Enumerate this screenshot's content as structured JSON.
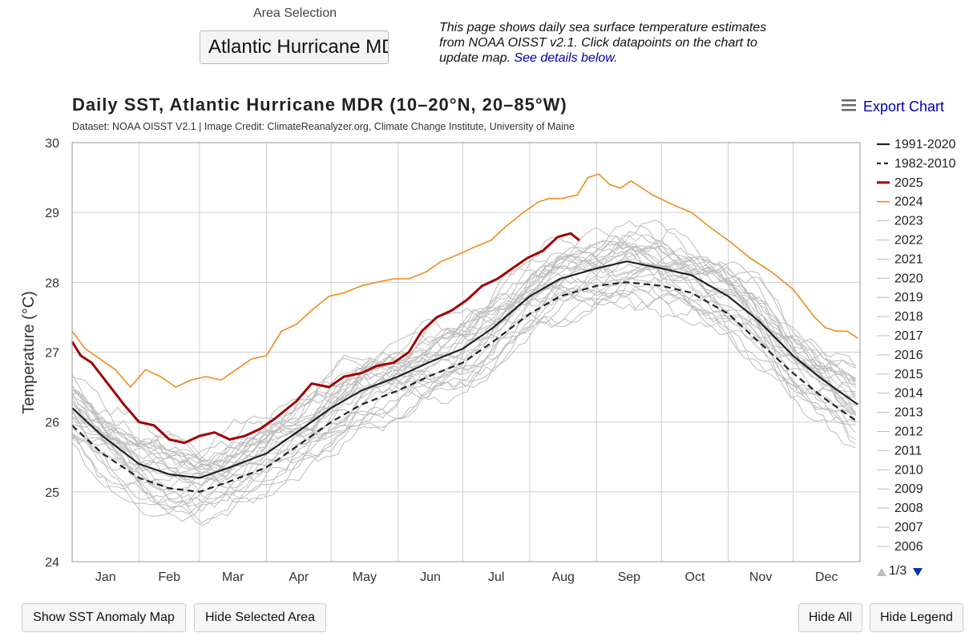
{
  "area": {
    "label": "Area Selection",
    "value": "Atlantic Hurricane MDR"
  },
  "intro": {
    "text": "This page shows daily sea surface temperature estimates from NOAA OISST v2.1. Click datapoints on the chart to update map. ",
    "link": "See details below",
    "end": "."
  },
  "export_label": "Export Chart",
  "pager": "1/3",
  "buttons": {
    "show_map": "Show SST Anomaly Map",
    "hide_area": "Hide Selected Area",
    "hide_all": "Hide All",
    "hide_legend": "Hide Legend"
  },
  "colors": {
    "y2025": "#a00000",
    "y2024": "#f08c1e",
    "climatology": "#222222",
    "other_years": "#bdbdbd",
    "link": "#0000aa"
  },
  "chart_data": {
    "type": "line",
    "title": "Daily SST, Atlantic Hurricane MDR (10–20°N, 20–85°W)",
    "subtitle": "Dataset: NOAA OISST V2.1 | Image Credit: ClimateReanalyzer.org, Climate Change Institute, University of Maine",
    "xlabel": "",
    "ylabel": "Temperature (°C)",
    "ylim": [
      24,
      30
    ],
    "yticks": [
      24,
      25,
      26,
      27,
      28,
      29,
      30
    ],
    "months": [
      "Jan",
      "Feb",
      "Mar",
      "Apr",
      "May",
      "Jun",
      "Jul",
      "Aug",
      "Sep",
      "Oct",
      "Nov",
      "Dec"
    ],
    "grid": true,
    "legend_position": "right",
    "legend_visible": [
      "1991-2020",
      "1982-2010",
      "2025",
      "2024",
      "2023",
      "2022",
      "2021",
      "2020",
      "2019",
      "2018",
      "2017",
      "2016",
      "2015",
      "2014",
      "2013",
      "2012",
      "2011",
      "2010",
      "2009",
      "2008",
      "2007",
      "2006"
    ],
    "series": [
      {
        "name": "1991-2020",
        "style": "solid",
        "x": [
          1,
          15,
          32,
          46,
          60,
          74,
          91,
          105,
          121,
          135,
          152,
          166,
          182,
          196,
          213,
          227,
          244,
          258,
          274,
          288,
          305,
          319,
          335,
          349,
          365
        ],
        "y": [
          26.2,
          25.8,
          25.4,
          25.25,
          25.2,
          25.35,
          25.55,
          25.85,
          26.2,
          26.45,
          26.65,
          26.85,
          27.05,
          27.35,
          27.8,
          28.05,
          28.2,
          28.3,
          28.2,
          28.1,
          27.8,
          27.45,
          26.95,
          26.6,
          26.25
        ]
      },
      {
        "name": "1982-2010",
        "style": "dashed",
        "x": [
          1,
          15,
          32,
          46,
          60,
          74,
          91,
          105,
          121,
          135,
          152,
          166,
          182,
          196,
          213,
          227,
          244,
          258,
          274,
          288,
          305,
          319,
          335,
          349,
          365
        ],
        "y": [
          25.95,
          25.55,
          25.2,
          25.05,
          25.0,
          25.15,
          25.35,
          25.65,
          26.0,
          26.25,
          26.45,
          26.65,
          26.85,
          27.15,
          27.55,
          27.8,
          27.95,
          28.0,
          27.95,
          27.85,
          27.55,
          27.15,
          26.7,
          26.35,
          26.0
        ]
      },
      {
        "name": "2025",
        "style": "solid",
        "x": [
          1,
          5,
          10,
          15,
          20,
          25,
          32,
          39,
          46,
          53,
          60,
          67,
          74,
          81,
          88,
          95,
          105,
          112,
          120,
          127,
          135,
          142,
          150,
          157,
          163,
          170,
          177,
          184,
          191,
          198,
          205,
          212,
          219,
          226,
          232,
          236
        ],
        "y": [
          27.15,
          26.95,
          26.85,
          26.65,
          26.45,
          26.25,
          26.0,
          25.95,
          25.75,
          25.7,
          25.8,
          25.85,
          25.75,
          25.8,
          25.9,
          26.05,
          26.3,
          26.55,
          26.5,
          26.65,
          26.7,
          26.8,
          26.85,
          27.0,
          27.3,
          27.5,
          27.6,
          27.75,
          27.95,
          28.05,
          28.2,
          28.35,
          28.45,
          28.65,
          28.7,
          28.6
        ]
      },
      {
        "name": "2024",
        "style": "solid",
        "x": [
          1,
          7,
          14,
          21,
          28,
          35,
          42,
          49,
          56,
          63,
          70,
          77,
          84,
          91,
          98,
          105,
          112,
          120,
          127,
          135,
          142,
          150,
          157,
          165,
          172,
          180,
          187,
          195,
          202,
          210,
          217,
          222,
          228,
          235,
          240,
          245,
          250,
          255,
          260,
          265,
          270,
          280,
          288,
          296,
          305,
          315,
          325,
          335,
          345,
          350,
          355,
          360,
          365
        ],
        "y": [
          27.3,
          27.05,
          26.9,
          26.75,
          26.5,
          26.75,
          26.65,
          26.5,
          26.6,
          26.65,
          26.6,
          26.75,
          26.9,
          26.95,
          27.3,
          27.4,
          27.6,
          27.8,
          27.85,
          27.95,
          28.0,
          28.05,
          28.05,
          28.15,
          28.3,
          28.4,
          28.5,
          28.6,
          28.8,
          29.0,
          29.15,
          29.2,
          29.2,
          29.25,
          29.5,
          29.55,
          29.4,
          29.35,
          29.45,
          29.35,
          29.25,
          29.1,
          29.0,
          28.8,
          28.6,
          28.35,
          28.15,
          27.9,
          27.5,
          27.35,
          27.3,
          27.3,
          27.2
        ]
      }
    ]
  }
}
